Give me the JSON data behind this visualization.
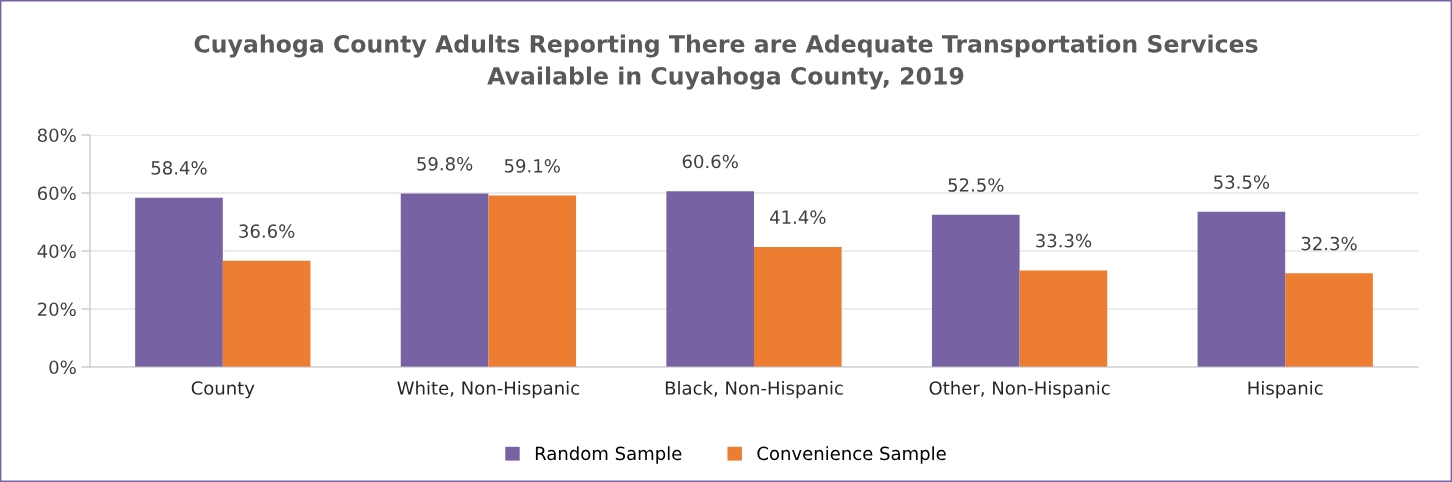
{
  "chart_data": {
    "type": "bar",
    "title": "Cuyahoga County Adults Reporting There are Adequate Transportation Services\nAvailable in Cuyahoga County, 2019",
    "categories": [
      "County",
      "White, Non-Hispanic",
      "Black, Non-Hispanic",
      "Other, Non-Hispanic",
      "Hispanic"
    ],
    "series": [
      {
        "name": "Random Sample",
        "color": "#7763a3",
        "values": [
          58.4,
          59.8,
          60.6,
          52.5,
          53.5
        ],
        "value_labels": [
          "58.4%",
          "59.8%",
          "60.6%",
          "52.5%",
          "53.5%"
        ]
      },
      {
        "name": "Convenience Sample",
        "color": "#ed7d31",
        "values": [
          36.6,
          59.1,
          41.4,
          33.3,
          32.3
        ],
        "value_labels": [
          "36.6%",
          "59.1%",
          "41.4%",
          "33.3%",
          "32.3%"
        ]
      }
    ],
    "ylim": [
      0,
      80
    ],
    "yticks": [
      {
        "value": 0,
        "label": "0%"
      },
      {
        "value": 20,
        "label": "20%"
      },
      {
        "value": 40,
        "label": "40%"
      },
      {
        "value": 60,
        "label": "60%"
      },
      {
        "value": 80,
        "label": "80%"
      }
    ],
    "grid": "y",
    "legend": "bottom"
  }
}
